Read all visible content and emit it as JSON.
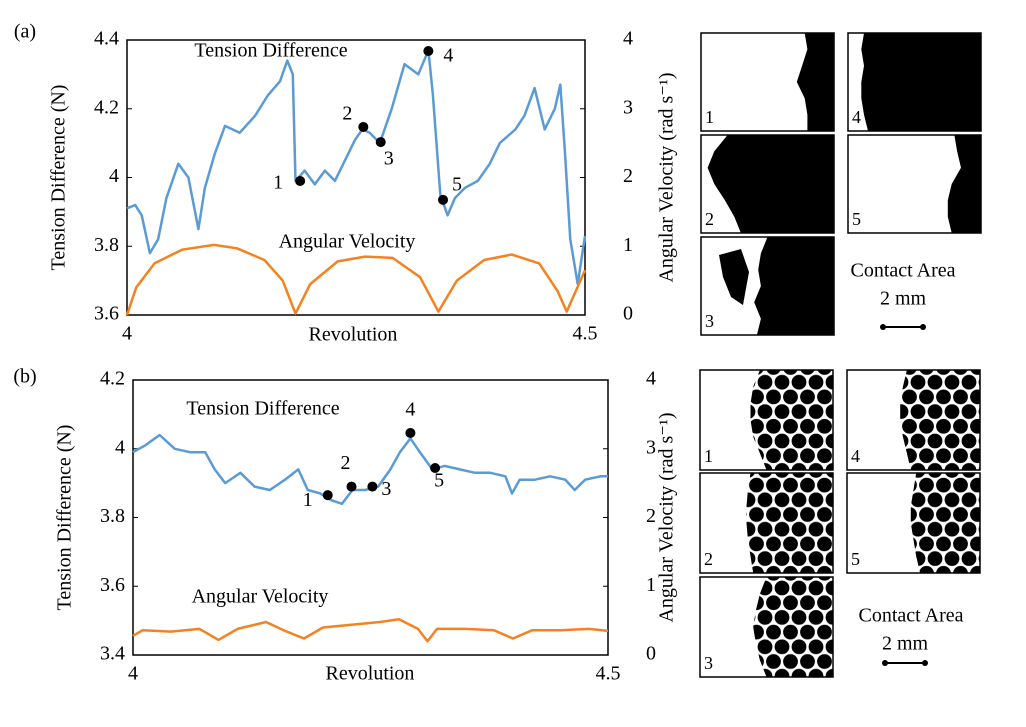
{
  "chart_data": [
    {
      "type": "line",
      "label": "(a)",
      "ylabel": "Tension Difference (N)",
      "y2label": "Angular Velocity (rad s⁻¹)",
      "xlabel": "Revolution",
      "xlim": [
        4,
        4.5
      ],
      "xticks": [
        4,
        4.5
      ],
      "ylim": [
        3.6,
        4.4
      ],
      "yticks": [
        3.6,
        3.8,
        4,
        4.2,
        4.4
      ],
      "y2lim": [
        0,
        4
      ],
      "y2ticks": [
        0,
        1,
        2,
        3,
        4
      ],
      "series": [
        {
          "name": "Tension Difference",
          "color": "#5b9bd5",
          "x": [
            4.0,
            4.009,
            4.016,
            4.025,
            4.034,
            4.043,
            4.056,
            4.067,
            4.078,
            4.085,
            4.096,
            4.107,
            4.123,
            4.14,
            4.154,
            4.167,
            4.175,
            4.181,
            4.184,
            4.194,
            4.205,
            4.216,
            4.227,
            4.238,
            4.249,
            4.257,
            4.265,
            4.276,
            4.289,
            4.303,
            4.318,
            4.329,
            4.334,
            4.342,
            4.35,
            4.358,
            4.369,
            4.383,
            4.396,
            4.407,
            4.424,
            4.434,
            4.445,
            4.456,
            4.467,
            4.473,
            4.478,
            4.484,
            4.492,
            4.5
          ],
          "values": [
            3.91,
            3.92,
            3.89,
            3.78,
            3.82,
            3.94,
            4.04,
            4.0,
            3.85,
            3.97,
            4.07,
            4.15,
            4.13,
            4.18,
            4.24,
            4.28,
            4.34,
            4.3,
            3.99,
            4.02,
            3.98,
            4.02,
            3.99,
            4.05,
            4.11,
            4.14,
            4.13,
            4.1,
            4.2,
            4.33,
            4.3,
            4.37,
            4.24,
            3.95,
            3.89,
            3.94,
            3.97,
            3.99,
            4.04,
            4.1,
            4.14,
            4.18,
            4.26,
            4.14,
            4.2,
            4.27,
            4.08,
            3.82,
            3.69,
            3.83
          ]
        },
        {
          "name": "Angular Velocity",
          "color": "#f58220",
          "axis": "y2",
          "x": [
            4.0,
            4.01,
            4.03,
            4.06,
            4.095,
            4.12,
            4.15,
            4.17,
            4.184,
            4.2,
            4.23,
            4.26,
            4.29,
            4.32,
            4.34,
            4.36,
            4.39,
            4.42,
            4.45,
            4.47,
            4.48,
            4.5
          ],
          "values": [
            0,
            0.4,
            0.75,
            0.95,
            1.02,
            0.97,
            0.8,
            0.5,
            0.02,
            0.45,
            0.78,
            0.85,
            0.83,
            0.55,
            0.05,
            0.5,
            0.8,
            0.88,
            0.75,
            0.35,
            0.05,
            0.65
          ]
        }
      ],
      "markers": [
        {
          "label": "1",
          "x": 4.189,
          "y": 3.99
        },
        {
          "label": "2",
          "x": 4.258,
          "y": 4.147
        },
        {
          "label": "3",
          "x": 4.277,
          "y": 4.103
        },
        {
          "label": "4",
          "x": 4.329,
          "y": 4.368
        },
        {
          "label": "5",
          "x": 4.345,
          "y": 3.935
        }
      ],
      "panels": [
        "1",
        "2",
        "3",
        "4",
        "5"
      ],
      "panel_title": "Contact Area",
      "scale": "2 mm"
    },
    {
      "type": "line",
      "label": "(b)",
      "ylabel": "Tension Difference (N)",
      "y2label": "Angular Velocity (rad s⁻¹)",
      "xlabel": "Revolution",
      "xlim": [
        4,
        4.5
      ],
      "xticks": [
        4,
        4.5
      ],
      "ylim": [
        3.4,
        4.2
      ],
      "yticks": [
        3.4,
        3.6,
        3.8,
        4,
        4.2
      ],
      "y2lim": [
        0,
        4
      ],
      "y2ticks": [
        0,
        1,
        2,
        3,
        4
      ],
      "series": [
        {
          "name": "Tension Difference",
          "color": "#5b9bd5",
          "x": [
            4.0,
            4.013,
            4.028,
            4.044,
            4.06,
            4.076,
            4.086,
            4.097,
            4.113,
            4.128,
            4.144,
            4.16,
            4.174,
            4.184,
            4.197,
            4.209,
            4.22,
            4.231,
            4.244,
            4.258,
            4.271,
            4.281,
            4.292,
            4.302,
            4.315,
            4.328,
            4.344,
            4.36,
            4.376,
            4.392,
            4.399,
            4.407,
            4.423,
            4.439,
            4.455,
            4.465,
            4.476,
            4.492,
            4.5
          ],
          "values": [
            3.99,
            4.01,
            4.04,
            4.0,
            3.99,
            3.99,
            3.94,
            3.9,
            3.93,
            3.89,
            3.88,
            3.91,
            3.94,
            3.88,
            3.87,
            3.85,
            3.84,
            3.88,
            3.88,
            3.89,
            3.94,
            3.99,
            4.03,
            3.99,
            3.94,
            3.95,
            3.94,
            3.93,
            3.93,
            3.92,
            3.87,
            3.91,
            3.91,
            3.92,
            3.91,
            3.88,
            3.91,
            3.92,
            3.92
          ]
        },
        {
          "name": "Angular Velocity",
          "color": "#f58220",
          "axis": "y2",
          "x": [
            4.0,
            4.01,
            4.04,
            4.07,
            4.09,
            4.11,
            4.14,
            4.16,
            4.18,
            4.2,
            4.23,
            4.26,
            4.28,
            4.3,
            4.31,
            4.32,
            4.35,
            4.38,
            4.4,
            4.42,
            4.45,
            4.48,
            4.5
          ],
          "values": [
            0.28,
            0.36,
            0.34,
            0.38,
            0.22,
            0.38,
            0.48,
            0.35,
            0.24,
            0.4,
            0.44,
            0.48,
            0.52,
            0.38,
            0.2,
            0.38,
            0.38,
            0.36,
            0.24,
            0.36,
            0.36,
            0.38,
            0.35
          ]
        }
      ],
      "markers": [
        {
          "label": "1",
          "x": 4.205,
          "y": 3.865
        },
        {
          "label": "2",
          "x": 4.23,
          "y": 3.89
        },
        {
          "label": "3",
          "x": 4.252,
          "y": 3.89
        },
        {
          "label": "4",
          "x": 4.292,
          "y": 4.046
        },
        {
          "label": "5",
          "x": 4.318,
          "y": 3.944
        }
      ],
      "panels": [
        "1",
        "2",
        "3",
        "4",
        "5"
      ],
      "panel_title": "Contact Area",
      "scale": "2 mm"
    }
  ]
}
